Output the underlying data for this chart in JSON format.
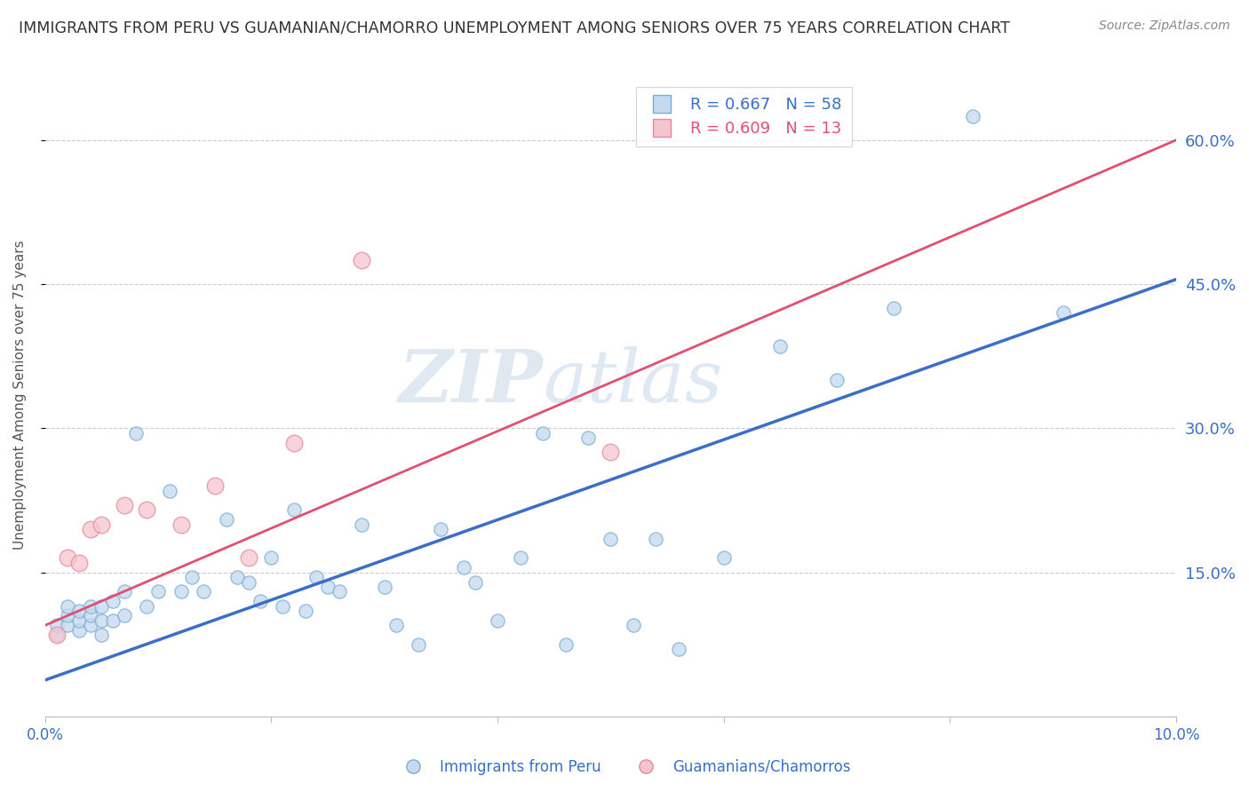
{
  "title": "IMMIGRANTS FROM PERU VS GUAMANIAN/CHAMORRO UNEMPLOYMENT AMONG SENIORS OVER 75 YEARS CORRELATION CHART",
  "source": "Source: ZipAtlas.com",
  "xlabel": "",
  "ylabel": "Unemployment Among Seniors over 75 years",
  "legend_labels": [
    "Immigrants from Peru",
    "Guamanians/Chamorros"
  ],
  "r_peru": 0.667,
  "n_peru": 58,
  "r_guam": 0.609,
  "n_guam": 13,
  "xlim": [
    0.0,
    0.1
  ],
  "ylim": [
    0.0,
    0.67
  ],
  "yticks": [
    0.15,
    0.3,
    0.45,
    0.6
  ],
  "ytick_labels": [
    "15.0%",
    "30.0%",
    "45.0%",
    "60.0%"
  ],
  "xticks": [
    0.0,
    0.02,
    0.04,
    0.06,
    0.08,
    0.1
  ],
  "xtick_labels": [
    "0.0%",
    "",
    "",
    "",
    "",
    "10.0%"
  ],
  "blue_scatter_face": "#C5D9F0",
  "blue_scatter_edge": "#7BADD4",
  "pink_scatter_face": "#F5C5CF",
  "pink_scatter_edge": "#E88899",
  "line_blue": "#3B6EC8",
  "line_pink": "#E05070",
  "bg_color": "#FFFFFF",
  "grid_color": "#CCCCCC",
  "title_color": "#333333",
  "label_color": "#3B6EC8",
  "peru_x": [
    0.001,
    0.001,
    0.002,
    0.002,
    0.002,
    0.003,
    0.003,
    0.003,
    0.004,
    0.004,
    0.004,
    0.005,
    0.005,
    0.005,
    0.006,
    0.006,
    0.007,
    0.007,
    0.008,
    0.009,
    0.01,
    0.011,
    0.012,
    0.013,
    0.014,
    0.016,
    0.017,
    0.018,
    0.019,
    0.02,
    0.021,
    0.022,
    0.023,
    0.024,
    0.025,
    0.026,
    0.028,
    0.03,
    0.031,
    0.033,
    0.035,
    0.037,
    0.038,
    0.04,
    0.042,
    0.044,
    0.046,
    0.048,
    0.05,
    0.052,
    0.054,
    0.056,
    0.06,
    0.065,
    0.07,
    0.075,
    0.082,
    0.09
  ],
  "peru_y": [
    0.085,
    0.095,
    0.095,
    0.105,
    0.115,
    0.09,
    0.1,
    0.11,
    0.095,
    0.105,
    0.115,
    0.085,
    0.1,
    0.115,
    0.1,
    0.12,
    0.105,
    0.13,
    0.295,
    0.115,
    0.13,
    0.235,
    0.13,
    0.145,
    0.13,
    0.205,
    0.145,
    0.14,
    0.12,
    0.165,
    0.115,
    0.215,
    0.11,
    0.145,
    0.135,
    0.13,
    0.2,
    0.135,
    0.095,
    0.075,
    0.195,
    0.155,
    0.14,
    0.1,
    0.165,
    0.295,
    0.075,
    0.29,
    0.185,
    0.095,
    0.185,
    0.07,
    0.165,
    0.385,
    0.35,
    0.425,
    0.625,
    0.42
  ],
  "guam_x": [
    0.001,
    0.002,
    0.003,
    0.004,
    0.005,
    0.007,
    0.009,
    0.012,
    0.015,
    0.018,
    0.022,
    0.028,
    0.05
  ],
  "guam_y": [
    0.085,
    0.165,
    0.16,
    0.195,
    0.2,
    0.22,
    0.215,
    0.2,
    0.24,
    0.165,
    0.285,
    0.475,
    0.275
  ],
  "peru_line_x0": 0.0,
  "peru_line_y0": 0.038,
  "peru_line_x1": 0.1,
  "peru_line_y1": 0.455,
  "guam_line_x0": 0.0,
  "guam_line_y0": 0.095,
  "guam_line_x1": 0.1,
  "guam_line_y1": 0.6
}
